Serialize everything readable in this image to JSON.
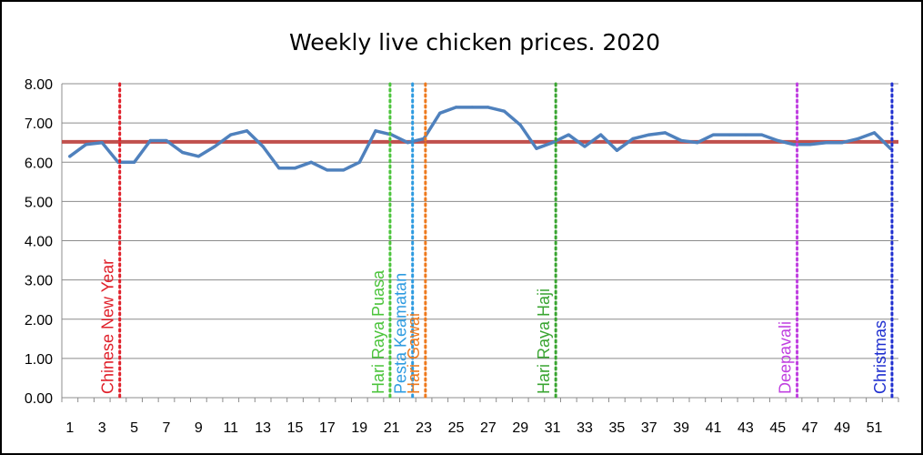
{
  "chart_data": {
    "type": "line",
    "title": "Weekly live chicken prices. 2020",
    "xlabel": "",
    "ylabel": "",
    "ylim": [
      0,
      8
    ],
    "xlim": [
      0.5,
      52.5
    ],
    "yticks": [
      "0.00",
      "1.00",
      "2.00",
      "3.00",
      "4.00",
      "5.00",
      "6.00",
      "7.00",
      "8.00"
    ],
    "xticks": [
      "1",
      "3",
      "5",
      "7",
      "9",
      "11",
      "13",
      "15",
      "17",
      "19",
      "21",
      "23",
      "25",
      "27",
      "29",
      "31",
      "33",
      "35",
      "37",
      "39",
      "41",
      "43",
      "45",
      "47",
      "49",
      "51"
    ],
    "grid": true,
    "legend": "none",
    "series": [
      {
        "color": "#4F81BD",
        "x": [
          1,
          2,
          3,
          4,
          5,
          6,
          7,
          8,
          9,
          10,
          11,
          12,
          13,
          14,
          15,
          16,
          17,
          18,
          19,
          20,
          21,
          22,
          23,
          24,
          25,
          26,
          27,
          28,
          29,
          30,
          31,
          32,
          33,
          34,
          35,
          36,
          37,
          38,
          39,
          40,
          41,
          42,
          43,
          44,
          45,
          46,
          47,
          48,
          49,
          50,
          51,
          52
        ],
        "values": [
          6.15,
          6.45,
          6.5,
          6.0,
          6.0,
          6.55,
          6.55,
          6.25,
          6.15,
          6.4,
          6.7,
          6.8,
          6.4,
          5.85,
          5.85,
          6.0,
          5.8,
          5.8,
          6.0,
          6.8,
          6.7,
          6.5,
          6.6,
          7.25,
          7.4,
          7.4,
          7.4,
          7.3,
          6.95,
          6.35,
          6.5,
          6.7,
          6.4,
          6.7,
          6.3,
          6.6,
          6.7,
          6.75,
          6.55,
          6.5,
          6.7,
          6.7,
          6.7,
          6.7,
          6.55,
          6.45,
          6.45,
          6.5,
          6.5,
          6.6,
          6.75,
          6.35
        ]
      },
      {
        "color": "#C0504D",
        "type": "reference",
        "values": [
          6.52,
          6.52
        ]
      }
    ],
    "annotations": [
      {
        "label": "Chinese New Year",
        "week": 4.1,
        "color": "#E0202A"
      },
      {
        "label": "Hari Raya Puasa",
        "week": 20.9,
        "color": "#4CC43C"
      },
      {
        "label": "Pesta Keamatan",
        "week": 22.3,
        "color": "#2E9BE0"
      },
      {
        "label": "Hari Gawai",
        "week": 23.1,
        "color": "#EE7A1E"
      },
      {
        "label": "Hari Raya Haji",
        "week": 31.2,
        "color": "#3AA532"
      },
      {
        "label": "Deepavali",
        "week": 46.2,
        "color": "#C040E0"
      },
      {
        "label": "Christmas",
        "week": 52.1,
        "color": "#2030D0"
      }
    ]
  }
}
